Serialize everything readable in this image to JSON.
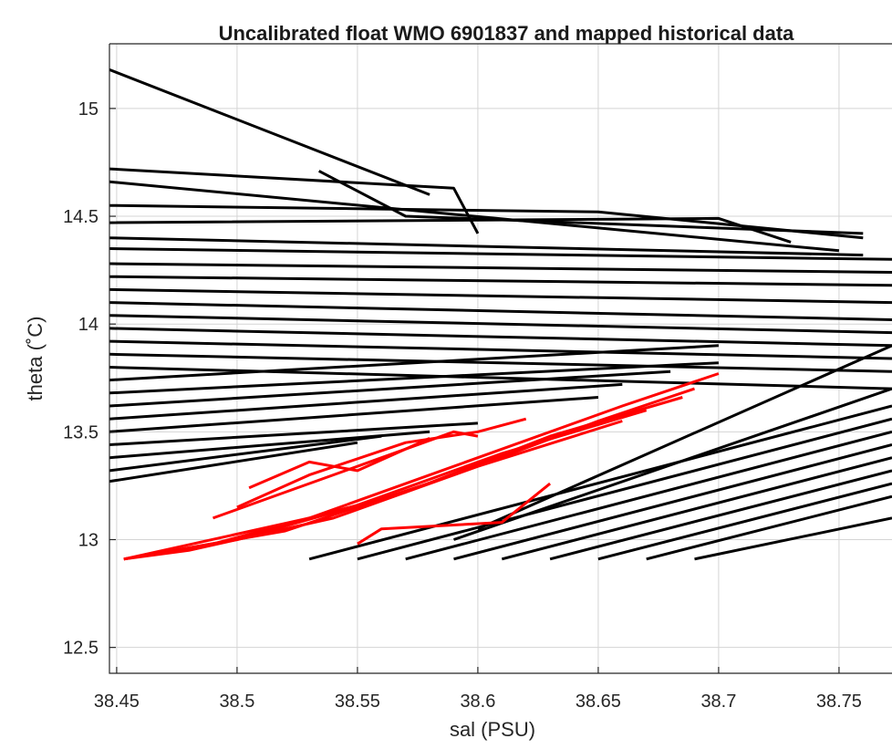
{
  "chart_data": {
    "type": "line",
    "title": "Uncalibrated float WMO 6901837 and mapped historical data",
    "xlabel": "sal (PSU)",
    "ylabel": "theta (˚C)",
    "xlim": [
      38.447,
      38.772
    ],
    "ylim": [
      12.38,
      15.3
    ],
    "xticks": [
      38.45,
      38.5,
      38.55,
      38.6,
      38.65,
      38.7,
      38.75
    ],
    "xtick_labels": [
      "38.45",
      "38.5",
      "38.55",
      "38.6",
      "38.65",
      "38.7",
      "38.75"
    ],
    "yticks": [
      12.5,
      13,
      13.5,
      14,
      14.5,
      15
    ],
    "ytick_labels": [
      "12.5",
      "13",
      "13.5",
      "14",
      "14.5",
      "15"
    ],
    "grid": true,
    "colors": {
      "historical": "#000000",
      "float": "#ff0000",
      "grid": "#d4d4d4"
    },
    "series": [
      {
        "color": "#000000",
        "lines": [
          {
            "x": [
              38.447,
              38.58
            ],
            "y": [
              15.18,
              14.6
            ]
          },
          {
            "x": [
              38.534,
              38.57,
              38.76
            ],
            "y": [
              14.71,
              14.5,
              14.42
            ]
          },
          {
            "x": [
              38.447,
              38.59,
              38.6
            ],
            "y": [
              14.72,
              14.63,
              14.42
            ]
          },
          {
            "x": [
              38.447,
              38.65,
              38.76
            ],
            "y": [
              14.55,
              14.52,
              14.4
            ]
          },
          {
            "x": [
              38.447,
              38.7,
              38.73
            ],
            "y": [
              14.47,
              14.49,
              14.38
            ]
          },
          {
            "x": [
              38.447,
              38.75
            ],
            "y": [
              14.66,
              14.34
            ]
          },
          {
            "x": [
              38.447,
              38.76
            ],
            "y": [
              14.4,
              14.32
            ]
          },
          {
            "x": [
              38.447,
              38.772
            ],
            "y": [
              14.35,
              14.3
            ]
          },
          {
            "x": [
              38.447,
              38.772
            ],
            "y": [
              14.28,
              14.24
            ]
          },
          {
            "x": [
              38.447,
              38.772
            ],
            "y": [
              14.22,
              14.18
            ]
          },
          {
            "x": [
              38.447,
              38.772
            ],
            "y": [
              14.16,
              14.1
            ]
          },
          {
            "x": [
              38.447,
              38.772
            ],
            "y": [
              14.1,
              14.02
            ]
          },
          {
            "x": [
              38.447,
              38.772
            ],
            "y": [
              14.04,
              13.96
            ]
          },
          {
            "x": [
              38.447,
              38.772
            ],
            "y": [
              13.98,
              13.9
            ]
          },
          {
            "x": [
              38.447,
              38.772
            ],
            "y": [
              13.92,
              13.84
            ]
          },
          {
            "x": [
              38.447,
              38.772
            ],
            "y": [
              13.86,
              13.78
            ]
          },
          {
            "x": [
              38.447,
              38.772
            ],
            "y": [
              13.8,
              13.7
            ]
          },
          {
            "x": [
              38.447,
              38.7
            ],
            "y": [
              13.74,
              13.9
            ]
          },
          {
            "x": [
              38.447,
              38.7
            ],
            "y": [
              13.68,
              13.82
            ]
          },
          {
            "x": [
              38.447,
              38.68
            ],
            "y": [
              13.62,
              13.78
            ]
          },
          {
            "x": [
              38.447,
              38.66
            ],
            "y": [
              13.56,
              13.72
            ]
          },
          {
            "x": [
              38.447,
              38.65
            ],
            "y": [
              13.5,
              13.66
            ]
          },
          {
            "x": [
              38.447,
              38.6
            ],
            "y": [
              13.44,
              13.54
            ]
          },
          {
            "x": [
              38.447,
              38.58
            ],
            "y": [
              13.38,
              13.5
            ]
          },
          {
            "x": [
              38.447,
              38.56
            ],
            "y": [
              13.32,
              13.48
            ]
          },
          {
            "x": [
              38.447,
              38.55
            ],
            "y": [
              13.27,
              13.45
            ]
          },
          {
            "x": [
              38.53,
              38.772
            ],
            "y": [
              12.91,
              13.62
            ]
          },
          {
            "x": [
              38.55,
              38.772
            ],
            "y": [
              12.91,
              13.56
            ]
          },
          {
            "x": [
              38.57,
              38.772
            ],
            "y": [
              12.91,
              13.5
            ]
          },
          {
            "x": [
              38.59,
              38.772
            ],
            "y": [
              12.91,
              13.44
            ]
          },
          {
            "x": [
              38.61,
              38.772
            ],
            "y": [
              12.91,
              13.38
            ]
          },
          {
            "x": [
              38.63,
              38.772
            ],
            "y": [
              12.91,
              13.32
            ]
          },
          {
            "x": [
              38.65,
              38.772
            ],
            "y": [
              12.91,
              13.26
            ]
          },
          {
            "x": [
              38.67,
              38.772
            ],
            "y": [
              12.91,
              13.2
            ]
          },
          {
            "x": [
              38.69,
              38.772
            ],
            "y": [
              12.91,
              13.1
            ]
          },
          {
            "x": [
              38.59,
              38.772
            ],
            "y": [
              13.0,
              13.7
            ]
          },
          {
            "x": [
              38.6,
              38.772
            ],
            "y": [
              13.05,
              13.9
            ]
          }
        ]
      },
      {
        "color": "#ff0000",
        "lines": [
          {
            "x": [
              38.453,
              38.53,
              38.6,
              38.66,
              38.7
            ],
            "y": [
              12.91,
              13.1,
              13.38,
              13.62,
              13.77
            ]
          },
          {
            "x": [
              38.453,
              38.52,
              38.59,
              38.65,
              38.69
            ],
            "y": [
              12.91,
              13.04,
              13.3,
              13.55,
              13.7
            ]
          },
          {
            "x": [
              38.453,
              38.5,
              38.57,
              38.63,
              38.685
            ],
            "y": [
              12.91,
              13.0,
              13.22,
              13.48,
              13.66
            ]
          },
          {
            "x": [
              38.453,
              38.49,
              38.55,
              38.61,
              38.67
            ],
            "y": [
              12.91,
              12.98,
              13.16,
              13.4,
              13.6
            ]
          },
          {
            "x": [
              38.453,
              38.48,
              38.54,
              38.6,
              38.66
            ],
            "y": [
              12.91,
              12.95,
              13.1,
              13.34,
              13.55
            ]
          },
          {
            "x": [
              38.49,
              38.52,
              38.56,
              38.59,
              38.6
            ],
            "y": [
              13.1,
              13.22,
              13.38,
              13.5,
              13.48
            ]
          },
          {
            "x": [
              38.505,
              38.53,
              38.55,
              38.58
            ],
            "y": [
              13.24,
              13.36,
              13.32,
              13.47
            ]
          },
          {
            "x": [
              38.55,
              38.56,
              38.61,
              38.63
            ],
            "y": [
              12.98,
              13.05,
              13.08,
              13.26
            ]
          },
          {
            "x": [
              38.5,
              38.53,
              38.57,
              38.6,
              38.62
            ],
            "y": [
              13.15,
              13.3,
              13.45,
              13.5,
              13.56
            ]
          }
        ]
      }
    ]
  }
}
